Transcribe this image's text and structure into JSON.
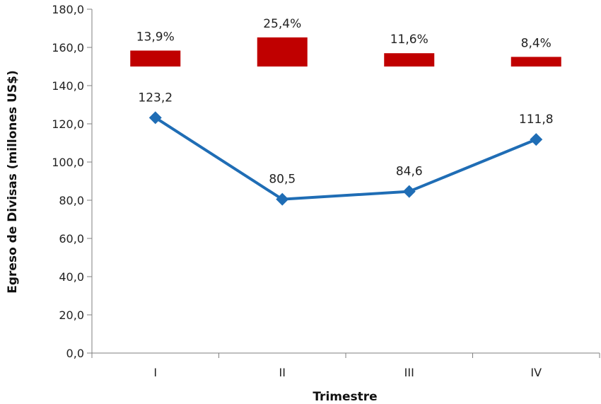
{
  "chart_data": {
    "type": "line",
    "xlabel": "Trimestre",
    "ylabel": "Egreso de Divisas (millones US$)",
    "ylim": [
      0,
      180
    ],
    "yticks": [
      "0,0",
      "20,0",
      "40,0",
      "60,0",
      "80,0",
      "100,0",
      "120,0",
      "140,0",
      "160,0",
      "180,0"
    ],
    "categories": [
      "I",
      "II",
      "III",
      "IV"
    ],
    "series": [
      {
        "values": [
          123.2,
          80.5,
          84.6,
          111.8
        ],
        "labels": [
          "123,2",
          "80,5",
          "84,6",
          "111,8"
        ],
        "color": "#1f6db5"
      }
    ],
    "share_bars": {
      "labels": [
        "13,9%",
        "25,4%",
        "11,6%",
        "8,4%"
      ],
      "values": [
        13.9,
        25.4,
        11.6,
        8.4
      ],
      "color": "#c00000"
    },
    "grid": false,
    "legend": "none"
  }
}
